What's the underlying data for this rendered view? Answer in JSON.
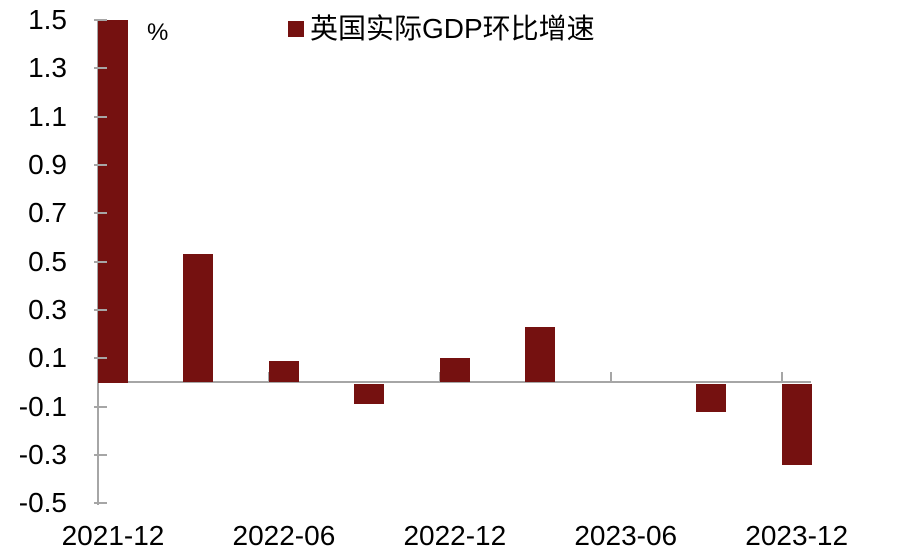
{
  "chart_data": {
    "type": "bar",
    "title": "",
    "unit_label": "%",
    "legend": [
      "英国实际GDP环比增速"
    ],
    "legend_position": "top",
    "categories": [
      "2021-12",
      "2022-03",
      "2022-06",
      "2022-09",
      "2022-12",
      "2023-03",
      "2023-06",
      "2023-09",
      "2023-12"
    ],
    "values": [
      1.5,
      0.53,
      0.09,
      -0.09,
      0.1,
      0.23,
      0.0,
      -0.12,
      -0.34
    ],
    "x_tick_labels": [
      "2021-12",
      "2022-06",
      "2022-12",
      "2023-06",
      "2023-12"
    ],
    "y_ticks": [
      "1.5",
      "1.3",
      "1.1",
      "0.9",
      "0.7",
      "0.5",
      "0.3",
      "0.1",
      "-0.1",
      "-0.3",
      "-0.5"
    ],
    "ylim": [
      -0.5,
      1.5
    ],
    "xlabel": "",
    "ylabel": "%",
    "grid": false,
    "bar_color": "#751110",
    "axis_color": "#a6a6a6",
    "text_color": "#000000",
    "background_color": "#ffffff"
  }
}
